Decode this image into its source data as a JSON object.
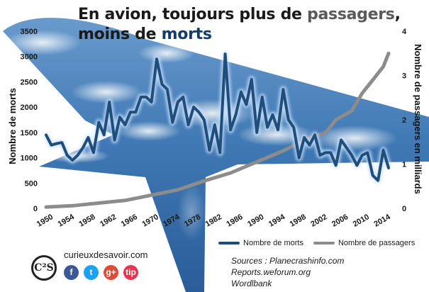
{
  "title": {
    "line1_a": "En avion, toujours plus de ",
    "line1_b": "passagers",
    "line1_c": ",",
    "line2_a": "moins de ",
    "line2_b": "morts"
  },
  "colors": {
    "deaths": "#1f4e7c",
    "passengers": "#8c8c8c",
    "title_accent": "#123c6e"
  },
  "chart_data": {
    "type": "line",
    "xlabel": "",
    "x_ticks": [
      "1950",
      "1954",
      "1958",
      "1962",
      "1966",
      "1970",
      "1974",
      "1978",
      "1982",
      "1986",
      "1990",
      "1994",
      "1998",
      "2002",
      "2006",
      "2010",
      "2014"
    ],
    "xlim": [
      1950,
      2015
    ],
    "y_left": {
      "label": "Nombre de morts",
      "lim": [
        0,
        3500
      ],
      "ticks": [
        "0",
        "500",
        "1000",
        "1500",
        "2000",
        "2500",
        "3000",
        "3500"
      ]
    },
    "y_right": {
      "label": "Nombre de passagers en milliards",
      "lim": [
        0,
        4
      ],
      "ticks": [
        "0",
        "1",
        "2",
        "3",
        "4"
      ]
    },
    "series": [
      {
        "name": "Nombre de morts",
        "axis": "left",
        "x": [
          1950,
          1951,
          1952,
          1953,
          1954,
          1955,
          1956,
          1957,
          1958,
          1959,
          1960,
          1961,
          1962,
          1963,
          1964,
          1965,
          1966,
          1967,
          1968,
          1969,
          1970,
          1971,
          1972,
          1973,
          1974,
          1975,
          1976,
          1977,
          1978,
          1979,
          1980,
          1981,
          1982,
          1983,
          1984,
          1985,
          1986,
          1987,
          1988,
          1989,
          1990,
          1991,
          1992,
          1993,
          1994,
          1995,
          1996,
          1997,
          1998,
          1999,
          2000,
          2001,
          2002,
          2003,
          2004,
          2005,
          2006,
          2007,
          2008,
          2009,
          2010,
          2011,
          2012,
          2013,
          2014,
          2015
        ],
        "values": [
          1450,
          1250,
          1280,
          1300,
          1050,
          950,
          1050,
          1200,
          1400,
          1100,
          1700,
          1450,
          2100,
          1350,
          1800,
          1650,
          1900,
          1900,
          2200,
          2200,
          2100,
          2950,
          2450,
          2350,
          1700,
          2100,
          2200,
          1650,
          2000,
          1900,
          1750,
          1150,
          1650,
          1100,
          3050,
          1550,
          1850,
          2300,
          2050,
          2550,
          1500,
          2200,
          1600,
          1850,
          1550,
          2350,
          1750,
          1600,
          1000,
          1400,
          1250,
          1450,
          1050,
          1100,
          1100,
          850,
          1350,
          1200,
          1050,
          850,
          1050,
          1100,
          650,
          550,
          1150,
          800
        ]
      },
      {
        "name": "Nombre de passagers",
        "axis": "right",
        "x": [
          1950,
          1955,
          1960,
          1965,
          1970,
          1975,
          1980,
          1985,
          1990,
          1995,
          2000,
          2003,
          2005,
          2008,
          2010,
          2012,
          2014,
          2015
        ],
        "values": [
          0.03,
          0.06,
          0.12,
          0.18,
          0.3,
          0.42,
          0.62,
          0.8,
          1.05,
          1.3,
          1.6,
          1.7,
          2.0,
          2.2,
          2.6,
          2.9,
          3.2,
          3.5
        ]
      }
    ],
    "legend": {
      "position": "bottom-right",
      "deaths_label": "Nombre de morts",
      "passengers_label": "Nombre de passagers"
    },
    "grid": false
  },
  "sources": {
    "line1": "Sources : Planecrashinfo.com",
    "line2": "Reports.weforum.org",
    "line3": "Wordlbank"
  },
  "brand": {
    "logo_text": "C²S",
    "site": "curieuxdesavoir.com",
    "socials": [
      {
        "label": "f",
        "color": "#3b5998",
        "icon": "facebook-icon"
      },
      {
        "label": "t",
        "color": "#1da1f2",
        "icon": "twitter-icon"
      },
      {
        "label": "g+",
        "color": "#dd4b39",
        "icon": "google-plus-icon"
      },
      {
        "label": "tip",
        "color": "#e8344e",
        "icon": "tip-icon"
      }
    ]
  }
}
